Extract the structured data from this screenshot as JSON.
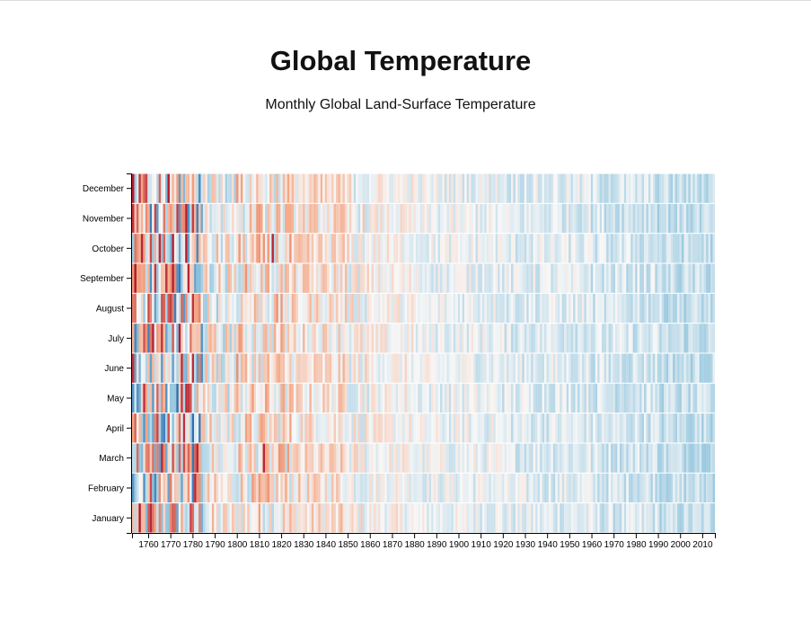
{
  "page": {
    "title": "Global Temperature",
    "subtitle": "Monthly Global Land-Surface Temperature"
  },
  "chart_data": {
    "type": "heatmap",
    "title": "Global Temperature",
    "subtitle": "Monthly Global Land-Surface Temperature",
    "xlabel": "",
    "ylabel": "",
    "x_range": [
      1753,
      2015
    ],
    "x_ticks": [
      "1760",
      "1770",
      "1780",
      "1790",
      "1800",
      "1810",
      "1820",
      "1830",
      "1840",
      "1850",
      "1860",
      "1870",
      "1880",
      "1890",
      "1900",
      "1910",
      "1920",
      "1930",
      "1940",
      "1950",
      "1960",
      "1970",
      "1980",
      "1990",
      "2000",
      "2010"
    ],
    "months": [
      "January",
      "February",
      "March",
      "April",
      "May",
      "June",
      "July",
      "August",
      "September",
      "October",
      "November",
      "December"
    ],
    "month_order": "January at bottom, December at top",
    "color_scale": {
      "cold": "#2166ac",
      "cool": "#92c5de",
      "neutral": "#f7f7f7",
      "warm": "#f4a582",
      "hot": "#b2182b"
    },
    "trend": "Early years (1753-1780) show strong mixed warm/cold anomalies; 1800-1850 mostly warm; after ~1900 consistently cool/blue, intensifying toward 2015",
    "notable_cells": [
      {
        "year": 1757,
        "month": "October",
        "level": "hot"
      },
      {
        "year": 1766,
        "month": "March",
        "level": "hot"
      },
      {
        "year": 1761,
        "month": "January",
        "level": "hot"
      },
      {
        "year": 1780,
        "month": "April",
        "level": "cold"
      },
      {
        "year": 1773,
        "month": "May",
        "level": "cold"
      },
      {
        "year": 1812,
        "month": "March",
        "level": "hot"
      },
      {
        "year": 1816,
        "month": "October",
        "level": "hot"
      },
      {
        "year": 1810,
        "month": "November",
        "level": "warm"
      }
    ],
    "grid": false,
    "legend": "none"
  }
}
